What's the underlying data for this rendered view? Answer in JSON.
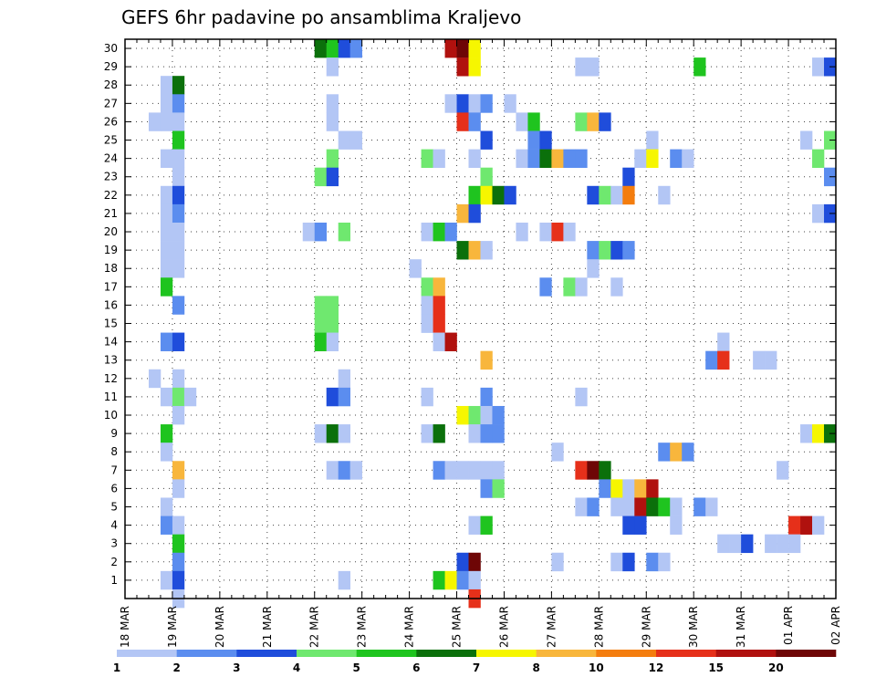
{
  "chart_data": {
    "type": "heatmap",
    "title": "GEFS 6hr padavine po ansamblima Kraljevo",
    "xlabel": "",
    "ylabel": "",
    "x_ticks": [
      "18 MAR",
      "19 MAR",
      "20 MAR",
      "21 MAR",
      "22 MAR",
      "23 MAR",
      "24 MAR",
      "25 MAR",
      "26 MAR",
      "27 MAR",
      "28 MAR",
      "29 MAR",
      "30 MAR",
      "31 MAR",
      "01 APR",
      "02 APR"
    ],
    "y_ticks": [
      "1",
      "2",
      "3",
      "4",
      "5",
      "6",
      "7",
      "8",
      "9",
      "10",
      "11",
      "12",
      "13",
      "14",
      "15",
      "16",
      "17",
      "18",
      "19",
      "20",
      "21",
      "22",
      "23",
      "24",
      "25",
      "26",
      "27",
      "28",
      "29",
      "30"
    ],
    "xlim_steps": [
      0,
      60
    ],
    "ylim_members": [
      0,
      30
    ],
    "steps_per_day": 4,
    "grid": true,
    "legend_position": "bottom",
    "legend": {
      "labels": [
        "1",
        "2",
        "3",
        "4",
        "5",
        "6",
        "7",
        "8",
        "10",
        "12",
        "15",
        "20"
      ],
      "colors": [
        "#b3c6f5",
        "#5b8def",
        "#1f4ddb",
        "#6fe86f",
        "#1fc41f",
        "#0b700b",
        "#f6f600",
        "#f8b63c",
        "#f47d0e",
        "#e6301a",
        "#b0110e",
        "#6e0606"
      ]
    },
    "cells_note": "each cell: [member, time step (6-hourly, 0 = 18 MAR 00Z), color class 0-11]",
    "cells": [
      [
        30,
        16,
        5
      ],
      [
        30,
        17,
        4
      ],
      [
        30,
        18,
        2
      ],
      [
        30,
        19,
        1
      ],
      [
        30,
        27,
        10
      ],
      [
        30,
        28,
        11
      ],
      [
        30,
        29,
        6
      ],
      [
        29,
        17,
        0
      ],
      [
        29,
        28,
        10
      ],
      [
        29,
        29,
        6
      ],
      [
        29,
        38,
        0
      ],
      [
        29,
        39,
        0
      ],
      [
        29,
        48,
        4
      ],
      [
        29,
        58,
        0
      ],
      [
        29,
        59,
        2
      ],
      [
        28,
        3,
        0
      ],
      [
        28,
        4,
        5
      ],
      [
        27,
        3,
        0
      ],
      [
        27,
        4,
        1
      ],
      [
        27,
        17,
        0
      ],
      [
        27,
        27,
        0
      ],
      [
        27,
        28,
        2
      ],
      [
        27,
        29,
        0
      ],
      [
        27,
        30,
        1
      ],
      [
        27,
        32,
        0
      ],
      [
        26,
        2,
        0
      ],
      [
        26,
        3,
        0
      ],
      [
        26,
        4,
        0
      ],
      [
        26,
        17,
        0
      ],
      [
        26,
        28,
        9
      ],
      [
        26,
        29,
        1
      ],
      [
        26,
        33,
        0
      ],
      [
        26,
        34,
        4
      ],
      [
        26,
        38,
        3
      ],
      [
        26,
        39,
        7
      ],
      [
        26,
        40,
        2
      ],
      [
        25,
        4,
        4
      ],
      [
        25,
        18,
        0
      ],
      [
        25,
        19,
        0
      ],
      [
        25,
        30,
        2
      ],
      [
        25,
        34,
        1
      ],
      [
        25,
        35,
        2
      ],
      [
        25,
        44,
        0
      ],
      [
        25,
        57,
        0
      ],
      [
        25,
        59,
        3
      ],
      [
        24,
        3,
        0
      ],
      [
        24,
        4,
        0
      ],
      [
        24,
        17,
        3
      ],
      [
        24,
        25,
        3
      ],
      [
        24,
        26,
        0
      ],
      [
        24,
        29,
        0
      ],
      [
        24,
        33,
        0
      ],
      [
        24,
        34,
        1
      ],
      [
        24,
        35,
        5
      ],
      [
        24,
        36,
        7
      ],
      [
        24,
        37,
        1
      ],
      [
        24,
        38,
        1
      ],
      [
        24,
        43,
        0
      ],
      [
        24,
        44,
        6
      ],
      [
        24,
        46,
        1
      ],
      [
        24,
        47,
        0
      ],
      [
        24,
        58,
        3
      ],
      [
        23,
        4,
        0
      ],
      [
        23,
        16,
        3
      ],
      [
        23,
        17,
        2
      ],
      [
        23,
        30,
        3
      ],
      [
        23,
        42,
        2
      ],
      [
        23,
        59,
        1
      ],
      [
        22,
        3,
        0
      ],
      [
        22,
        4,
        2
      ],
      [
        22,
        29,
        4
      ],
      [
        22,
        30,
        6
      ],
      [
        22,
        31,
        5
      ],
      [
        22,
        32,
        2
      ],
      [
        22,
        39,
        2
      ],
      [
        22,
        40,
        3
      ],
      [
        22,
        41,
        0
      ],
      [
        22,
        42,
        8
      ],
      [
        22,
        45,
        0
      ],
      [
        21,
        3,
        0
      ],
      [
        21,
        4,
        1
      ],
      [
        21,
        28,
        7
      ],
      [
        21,
        29,
        2
      ],
      [
        21,
        58,
        0
      ],
      [
        21,
        59,
        2
      ],
      [
        20,
        3,
        0
      ],
      [
        20,
        4,
        0
      ],
      [
        20,
        15,
        0
      ],
      [
        20,
        16,
        1
      ],
      [
        20,
        18,
        3
      ],
      [
        20,
        25,
        0
      ],
      [
        20,
        26,
        4
      ],
      [
        20,
        27,
        1
      ],
      [
        20,
        33,
        0
      ],
      [
        20,
        35,
        0
      ],
      [
        20,
        36,
        9
      ],
      [
        20,
        37,
        0
      ],
      [
        19,
        3,
        0
      ],
      [
        19,
        4,
        0
      ],
      [
        19,
        28,
        5
      ],
      [
        19,
        29,
        7
      ],
      [
        19,
        30,
        0
      ],
      [
        19,
        39,
        1
      ],
      [
        19,
        40,
        3
      ],
      [
        19,
        41,
        2
      ],
      [
        19,
        42,
        1
      ],
      [
        18,
        3,
        0
      ],
      [
        18,
        4,
        0
      ],
      [
        18,
        24,
        0
      ],
      [
        18,
        39,
        0
      ],
      [
        17,
        3,
        4
      ],
      [
        17,
        25,
        3
      ],
      [
        17,
        26,
        7
      ],
      [
        17,
        35,
        1
      ],
      [
        17,
        37,
        3
      ],
      [
        17,
        38,
        0
      ],
      [
        17,
        41,
        0
      ],
      [
        16,
        4,
        1
      ],
      [
        16,
        16,
        3
      ],
      [
        16,
        17,
        3
      ],
      [
        16,
        25,
        0
      ],
      [
        16,
        26,
        9
      ],
      [
        15,
        16,
        3
      ],
      [
        15,
        17,
        3
      ],
      [
        15,
        25,
        0
      ],
      [
        15,
        26,
        9
      ],
      [
        14,
        3,
        1
      ],
      [
        14,
        4,
        2
      ],
      [
        14,
        16,
        4
      ],
      [
        14,
        17,
        0
      ],
      [
        14,
        26,
        0
      ],
      [
        14,
        27,
        10
      ],
      [
        14,
        50,
        0
      ],
      [
        13,
        30,
        7
      ],
      [
        13,
        49,
        1
      ],
      [
        13,
        50,
        9
      ],
      [
        13,
        53,
        0
      ],
      [
        13,
        54,
        0
      ],
      [
        12,
        2,
        0
      ],
      [
        12,
        4,
        0
      ],
      [
        12,
        18,
        0
      ],
      [
        11,
        3,
        0
      ],
      [
        11,
        4,
        3
      ],
      [
        11,
        5,
        0
      ],
      [
        11,
        17,
        2
      ],
      [
        11,
        18,
        1
      ],
      [
        11,
        25,
        0
      ],
      [
        11,
        30,
        1
      ],
      [
        11,
        38,
        0
      ],
      [
        10,
        4,
        0
      ],
      [
        10,
        28,
        6
      ],
      [
        10,
        29,
        3
      ],
      [
        10,
        30,
        0
      ],
      [
        10,
        31,
        1
      ],
      [
        9,
        3,
        4
      ],
      [
        9,
        16,
        0
      ],
      [
        9,
        17,
        5
      ],
      [
        9,
        18,
        0
      ],
      [
        9,
        25,
        0
      ],
      [
        9,
        26,
        5
      ],
      [
        9,
        29,
        0
      ],
      [
        9,
        30,
        1
      ],
      [
        9,
        31,
        1
      ],
      [
        9,
        57,
        0
      ],
      [
        9,
        58,
        6
      ],
      [
        9,
        59,
        5
      ],
      [
        8,
        3,
        0
      ],
      [
        8,
        36,
        0
      ],
      [
        8,
        45,
        1
      ],
      [
        8,
        46,
        7
      ],
      [
        8,
        47,
        1
      ],
      [
        7,
        4,
        7
      ],
      [
        7,
        17,
        0
      ],
      [
        7,
        18,
        1
      ],
      [
        7,
        19,
        0
      ],
      [
        7,
        26,
        1
      ],
      [
        7,
        27,
        0
      ],
      [
        7,
        28,
        0
      ],
      [
        7,
        29,
        0
      ],
      [
        7,
        30,
        0
      ],
      [
        7,
        31,
        0
      ],
      [
        7,
        38,
        9
      ],
      [
        7,
        39,
        11
      ],
      [
        7,
        40,
        5
      ],
      [
        7,
        55,
        0
      ],
      [
        6,
        4,
        0
      ],
      [
        6,
        30,
        1
      ],
      [
        6,
        31,
        3
      ],
      [
        6,
        40,
        1
      ],
      [
        6,
        41,
        6
      ],
      [
        6,
        42,
        0
      ],
      [
        6,
        43,
        7
      ],
      [
        6,
        44,
        10
      ],
      [
        5,
        3,
        0
      ],
      [
        5,
        38,
        0
      ],
      [
        5,
        39,
        1
      ],
      [
        5,
        41,
        0
      ],
      [
        5,
        42,
        0
      ],
      [
        5,
        43,
        10
      ],
      [
        5,
        44,
        5
      ],
      [
        5,
        45,
        4
      ],
      [
        5,
        46,
        0
      ],
      [
        5,
        48,
        1
      ],
      [
        5,
        49,
        0
      ],
      [
        4,
        3,
        1
      ],
      [
        4,
        4,
        0
      ],
      [
        4,
        29,
        0
      ],
      [
        4,
        30,
        4
      ],
      [
        4,
        42,
        2
      ],
      [
        4,
        43,
        2
      ],
      [
        4,
        46,
        0
      ],
      [
        4,
        56,
        9
      ],
      [
        4,
        57,
        10
      ],
      [
        4,
        58,
        0
      ],
      [
        3,
        4,
        4
      ],
      [
        3,
        50,
        0
      ],
      [
        3,
        51,
        0
      ],
      [
        3,
        52,
        2
      ],
      [
        3,
        54,
        0
      ],
      [
        3,
        55,
        0
      ],
      [
        3,
        56,
        0
      ],
      [
        2,
        4,
        1
      ],
      [
        2,
        28,
        2
      ],
      [
        2,
        29,
        11
      ],
      [
        2,
        36,
        0
      ],
      [
        2,
        41,
        0
      ],
      [
        2,
        42,
        2
      ],
      [
        2,
        44,
        1
      ],
      [
        2,
        45,
        0
      ],
      [
        1,
        3,
        0
      ],
      [
        1,
        4,
        2
      ],
      [
        1,
        18,
        0
      ],
      [
        1,
        26,
        4
      ],
      [
        1,
        27,
        6
      ],
      [
        1,
        28,
        1
      ],
      [
        1,
        29,
        0
      ],
      [
        0,
        4,
        0
      ],
      [
        0,
        29,
        9
      ]
    ]
  }
}
